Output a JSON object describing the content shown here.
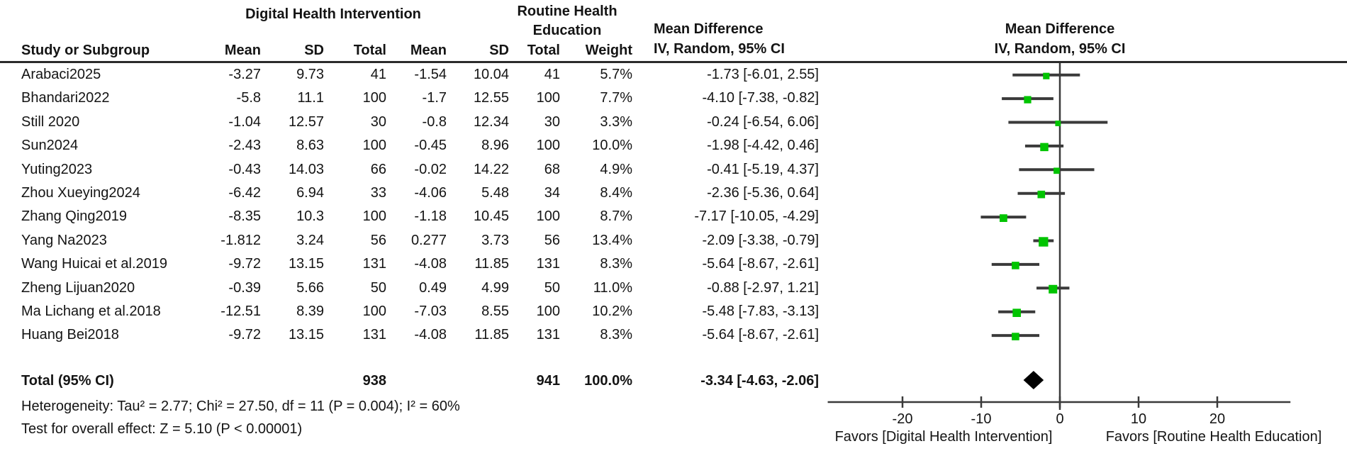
{
  "labels": {
    "group1": "Digital Health Intervention",
    "group2": "Routine Health Education",
    "md_title": "Mean Difference",
    "md_subtitle": "IV, Random, 95% CI"
  },
  "columns": [
    "Study or Subgroup",
    "Mean",
    "SD",
    "Total",
    "Mean",
    "SD",
    "Total",
    "Weight"
  ],
  "colors": {
    "marker_green": "#00c400",
    "line_dark": "#3a3a3a",
    "diamond_black": "#000000"
  },
  "chart_data": {
    "type": "forest",
    "effect_measure": "Mean Difference",
    "model": "IV, Random, 95% CI",
    "group1_label": "Digital Health Intervention",
    "group2_label": "Routine Health Education",
    "studies": [
      {
        "name": "Arabaci2025",
        "mean1": "-3.27",
        "sd1": "9.73",
        "n1": "41",
        "mean2": "-1.54",
        "sd2": "10.04",
        "n2": "41",
        "weight": "5.7%",
        "weight_num": 5.7,
        "ci_text": "-1.73 [-6.01, 2.55]",
        "est": -1.73,
        "lo": -6.01,
        "hi": 2.55
      },
      {
        "name": "Bhandari2022",
        "mean1": "-5.8",
        "sd1": "11.1",
        "n1": "100",
        "mean2": "-1.7",
        "sd2": "12.55",
        "n2": "100",
        "weight": "7.7%",
        "weight_num": 7.7,
        "ci_text": "-4.10 [-7.38, -0.82]",
        "est": -4.1,
        "lo": -7.38,
        "hi": -0.82
      },
      {
        "name": "Still 2020",
        "mean1": "-1.04",
        "sd1": "12.57",
        "n1": "30",
        "mean2": "-0.8",
        "sd2": "12.34",
        "n2": "30",
        "weight": "3.3%",
        "weight_num": 3.3,
        "ci_text": "-0.24 [-6.54, 6.06]",
        "est": -0.24,
        "lo": -6.54,
        "hi": 6.06
      },
      {
        "name": "Sun2024",
        "mean1": "-2.43",
        "sd1": "8.63",
        "n1": "100",
        "mean2": "-0.45",
        "sd2": "8.96",
        "n2": "100",
        "weight": "10.0%",
        "weight_num": 10.0,
        "ci_text": "-1.98 [-4.42, 0.46]",
        "est": -1.98,
        "lo": -4.42,
        "hi": 0.46
      },
      {
        "name": "Yuting2023",
        "mean1": "-0.43",
        "sd1": "14.03",
        "n1": "66",
        "mean2": "-0.02",
        "sd2": "14.22",
        "n2": "68",
        "weight": "4.9%",
        "weight_num": 4.9,
        "ci_text": "-0.41 [-5.19, 4.37]",
        "est": -0.41,
        "lo": -5.19,
        "hi": 4.37
      },
      {
        "name": "Zhou Xueying2024",
        "mean1": "-6.42",
        "sd1": "6.94",
        "n1": "33",
        "mean2": "-4.06",
        "sd2": "5.48",
        "n2": "34",
        "weight": "8.4%",
        "weight_num": 8.4,
        "ci_text": "-2.36 [-5.36, 0.64]",
        "est": -2.36,
        "lo": -5.36,
        "hi": 0.64
      },
      {
        "name": "Zhang Qing2019",
        "mean1": "-8.35",
        "sd1": "10.3",
        "n1": "100",
        "mean2": "-1.18",
        "sd2": "10.45",
        "n2": "100",
        "weight": "8.7%",
        "weight_num": 8.7,
        "ci_text": "-7.17 [-10.05, -4.29]",
        "est": -7.17,
        "lo": -10.05,
        "hi": -4.29
      },
      {
        "name": "Yang Na2023",
        "mean1": "-1.812",
        "sd1": "3.24",
        "n1": "56",
        "mean2": "0.277",
        "sd2": "3.73",
        "n2": "56",
        "weight": "13.4%",
        "weight_num": 13.4,
        "ci_text": "-2.09 [-3.38, -0.79]",
        "est": -2.09,
        "lo": -3.38,
        "hi": -0.79
      },
      {
        "name": "Wang Huicai et al.2019",
        "mean1": "-9.72",
        "sd1": "13.15",
        "n1": "131",
        "mean2": "-4.08",
        "sd2": "11.85",
        "n2": "131",
        "weight": "8.3%",
        "weight_num": 8.3,
        "ci_text": "-5.64 [-8.67, -2.61]",
        "est": -5.64,
        "lo": -8.67,
        "hi": -2.61
      },
      {
        "name": "Zheng Lijuan2020",
        "mean1": "-0.39",
        "sd1": "5.66",
        "n1": "50",
        "mean2": "0.49",
        "sd2": "4.99",
        "n2": "50",
        "weight": "11.0%",
        "weight_num": 11.0,
        "ci_text": "-0.88 [-2.97, 1.21]",
        "est": -0.88,
        "lo": -2.97,
        "hi": 1.21
      },
      {
        "name": "Ma Lichang et al.2018",
        "mean1": "-12.51",
        "sd1": "8.39",
        "n1": "100",
        "mean2": "-7.03",
        "sd2": "8.55",
        "n2": "100",
        "weight": "10.2%",
        "weight_num": 10.2,
        "ci_text": "-5.48 [-7.83, -3.13]",
        "est": -5.48,
        "lo": -7.83,
        "hi": -3.13
      },
      {
        "name": "Huang Bei2018",
        "mean1": "-9.72",
        "sd1": "13.15",
        "n1": "131",
        "mean2": "-4.08",
        "sd2": "11.85",
        "n2": "131",
        "weight": "8.3%",
        "weight_num": 8.3,
        "ci_text": "-5.64 [-8.67, -2.61]",
        "est": -5.64,
        "lo": -8.67,
        "hi": -2.61
      }
    ],
    "total": {
      "label": "Total (95% CI)",
      "n1": "938",
      "n2": "941",
      "weight": "100.0%",
      "ci_text": "-3.34 [-4.63, -2.06]",
      "est": -3.34,
      "lo": -4.63,
      "hi": -2.06
    },
    "heterogeneity": "Heterogeneity: Tau² = 2.77; Chi² = 27.50, df = 11 (P = 0.004); I² = 60%",
    "overall_effect": "Test for overall effect: Z = 5.10 (P < 0.00001)",
    "xaxis": {
      "ticks": [
        -20,
        -10,
        0,
        10,
        20
      ],
      "min": -29.5,
      "max": 29.3,
      "favors_left": "Favors [Digital Health Intervention]",
      "favors_right": "Favors [Routine Health Education]"
    }
  }
}
